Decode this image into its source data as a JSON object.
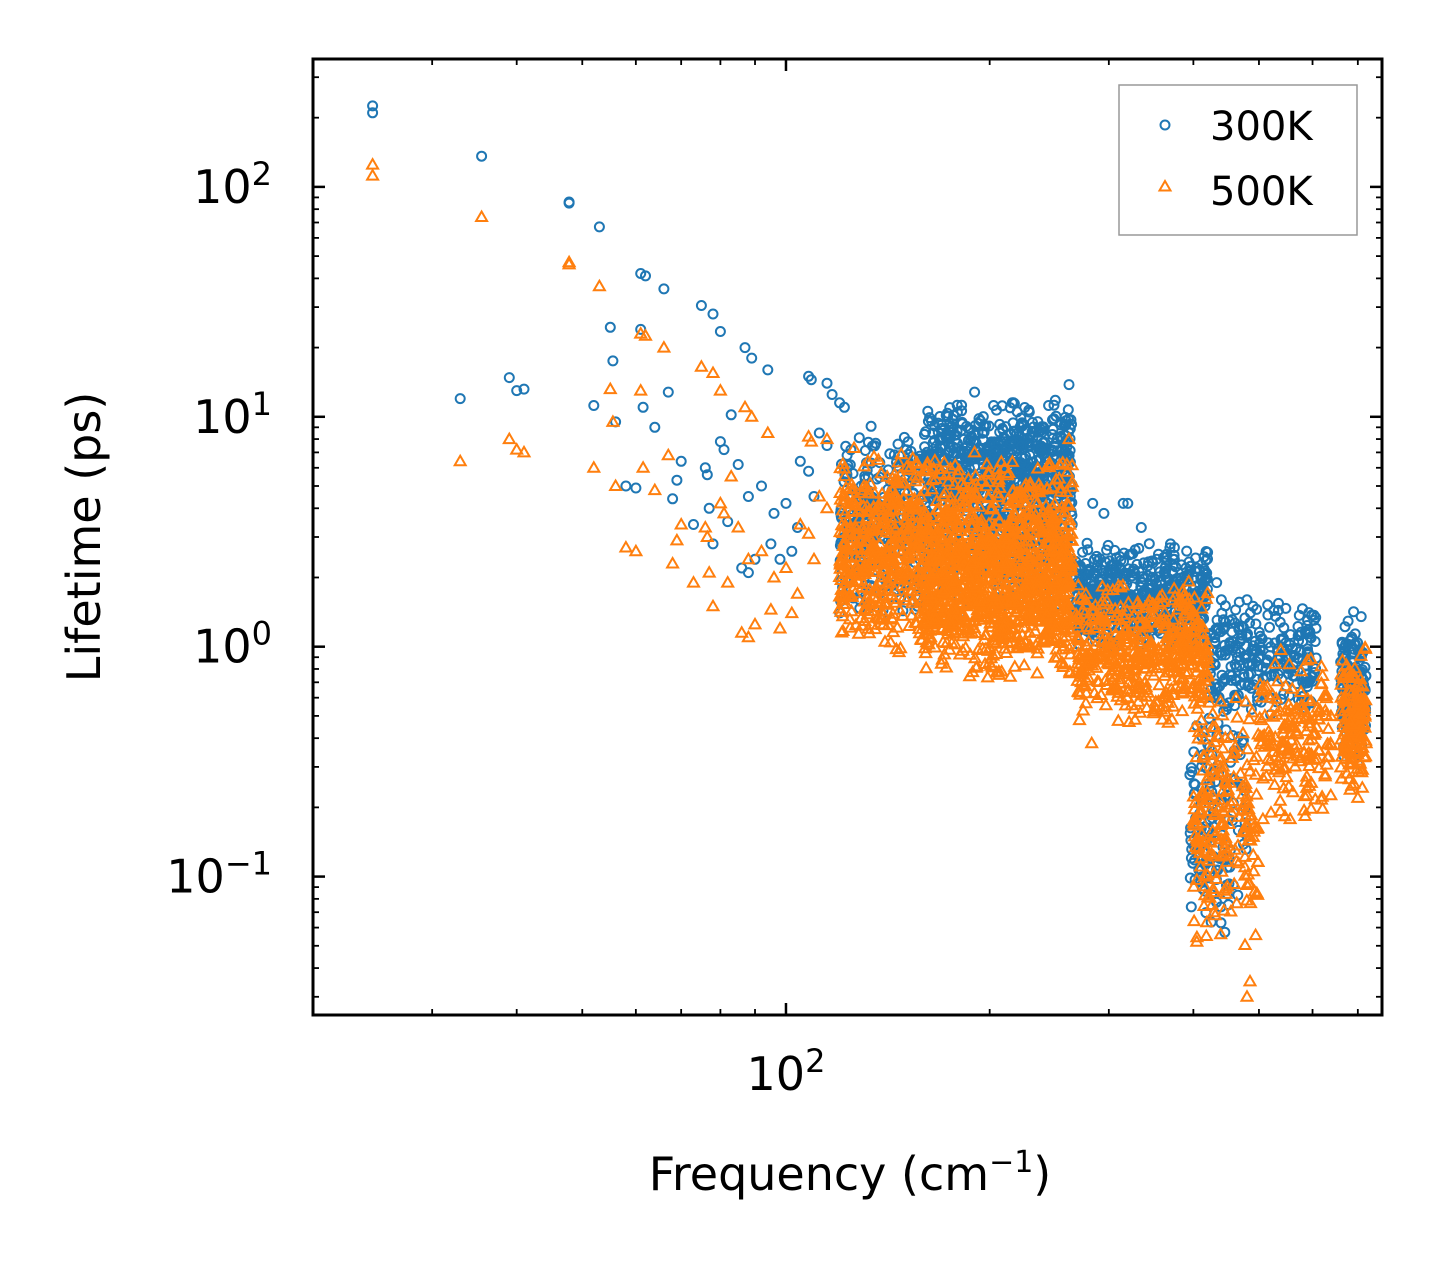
{
  "chart_data": {
    "type": "scatter",
    "title": "",
    "xlabel": "Frequency (cm",
    "xlabel_sup": "−1",
    "xlabel_tail": ")",
    "ylabel": "Lifetime (ps)",
    "xscale": "log",
    "yscale": "log",
    "xlim": [
      20,
      760
    ],
    "ylim": [
      0.025,
      360
    ],
    "x_tick_labels": [
      {
        "value": 100,
        "base": "10",
        "exp": "2"
      }
    ],
    "y_tick_labels": [
      {
        "value": 100,
        "base": "10",
        "exp": "2"
      },
      {
        "value": 10,
        "base": "10",
        "exp": "1"
      },
      {
        "value": 1,
        "base": "10",
        "exp": "0"
      },
      {
        "value": 0.1,
        "base": "10",
        "exp": "−1"
      }
    ],
    "legend_position": "top-right",
    "series": [
      {
        "name": "300K",
        "color": "#1f77b4",
        "marker": "circle",
        "points": [
          [
            24.5,
            225
          ],
          [
            24.5,
            210
          ],
          [
            35.5,
            136
          ],
          [
            47.8,
            86
          ],
          [
            47.8,
            85
          ],
          [
            53,
            67
          ],
          [
            61,
            42
          ],
          [
            62,
            41
          ],
          [
            66,
            36
          ],
          [
            75,
            30.5
          ],
          [
            78,
            28
          ],
          [
            80,
            23.5
          ],
          [
            87,
            20
          ],
          [
            89,
            18
          ],
          [
            94,
            16
          ],
          [
            108,
            15
          ],
          [
            109,
            14.5
          ],
          [
            115,
            14
          ],
          [
            117,
            12.5
          ],
          [
            120,
            11.5
          ],
          [
            122,
            11
          ],
          [
            33,
            12
          ],
          [
            39,
            14.8
          ],
          [
            40,
            13
          ],
          [
            41,
            13.2
          ],
          [
            52,
            11.2
          ],
          [
            55,
            24.5
          ],
          [
            55.5,
            17.5
          ],
          [
            56,
            9.5
          ],
          [
            61,
            24
          ],
          [
            61.5,
            11
          ],
          [
            64,
            9
          ],
          [
            67,
            12.8
          ],
          [
            68,
            4.4
          ],
          [
            69,
            5.3
          ],
          [
            70,
            6.4
          ],
          [
            73,
            3.4
          ],
          [
            76,
            6
          ],
          [
            76.5,
            5.6
          ],
          [
            77,
            4
          ],
          [
            78,
            2.8
          ],
          [
            80,
            7.8
          ],
          [
            81,
            7.2
          ],
          [
            82,
            3.5
          ],
          [
            83,
            10.2
          ],
          [
            85,
            6.2
          ],
          [
            86,
            2.2
          ],
          [
            88,
            4.5
          ],
          [
            90,
            2.4
          ],
          [
            92,
            5
          ],
          [
            95,
            2.8
          ],
          [
            96,
            3.8
          ],
          [
            98,
            2.4
          ],
          [
            100,
            4.2
          ],
          [
            102,
            2.6
          ],
          [
            104,
            3.3
          ],
          [
            105,
            6.4
          ],
          [
            108,
            5.8
          ],
          [
            110,
            4.5
          ],
          [
            112,
            8.5
          ],
          [
            115,
            7.5
          ],
          [
            60,
            4.9
          ],
          [
            58,
            5
          ],
          [
            88,
            2.1
          ],
          [
            262,
            13.8
          ],
          [
            190,
            12.8
          ],
          [
            217,
            11.5
          ],
          [
            216,
            11.5
          ],
          [
            250,
            11.8
          ],
          [
            284,
            4.2
          ],
          [
            295,
            3.8
          ],
          [
            315,
            4.2
          ],
          [
            320,
            4.2
          ],
          [
            335,
            3.3
          ],
          [
            370,
            2.8
          ],
          [
            375,
            2.7
          ],
          [
            390,
            2.2
          ],
          [
            413,
            2
          ],
          [
            418,
            2
          ],
          [
            433,
            1.9
          ],
          [
            440,
            1.6
          ],
          [
            480,
            1.6
          ],
          [
            490,
            1.5
          ],
          [
            590,
            1.3
          ],
          [
            595,
            1.1
          ],
          [
            690,
            1.42
          ],
          [
            705,
            0.9
          ]
        ],
        "clusters": [
          {
            "x": [
              120,
              265
            ],
            "y": [
              1.3,
              9.5
            ],
            "n": 900
          },
          {
            "x": [
              160,
              265
            ],
            "y": [
              4,
              12
            ],
            "n": 450
          },
          {
            "x": [
              268,
              420
            ],
            "y": [
              0.9,
              3.0
            ],
            "n": 550
          },
          {
            "x": [
              420,
              610
            ],
            "y": [
              0.5,
              1.6
            ],
            "n": 260
          },
          {
            "x": [
              395,
              480
            ],
            "y": [
              0.05,
              0.9
            ],
            "n": 150
          },
          {
            "x": [
              660,
              720
            ],
            "y": [
              0.3,
              1.4
            ],
            "n": 140
          }
        ]
      },
      {
        "name": "500K",
        "color": "#ff7f0e",
        "marker": "triangle",
        "points": [
          [
            24.5,
            125
          ],
          [
            24.5,
            112
          ],
          [
            35.5,
            74
          ],
          [
            47.8,
            47
          ],
          [
            47.8,
            46
          ],
          [
            53,
            37
          ],
          [
            61,
            23
          ],
          [
            62,
            22.5
          ],
          [
            66,
            20
          ],
          [
            75,
            16.5
          ],
          [
            78,
            15.5
          ],
          [
            80,
            13
          ],
          [
            87,
            11
          ],
          [
            89,
            10
          ],
          [
            94,
            8.5
          ],
          [
            108,
            8.2
          ],
          [
            109,
            7.8
          ],
          [
            115,
            8
          ],
          [
            33,
            6.4
          ],
          [
            39,
            8
          ],
          [
            40,
            7.2
          ],
          [
            41,
            7
          ],
          [
            52,
            6
          ],
          [
            55,
            13.2
          ],
          [
            55.5,
            9.5
          ],
          [
            56,
            5
          ],
          [
            61,
            13
          ],
          [
            61.5,
            6
          ],
          [
            64,
            4.8
          ],
          [
            67,
            6.8
          ],
          [
            68,
            2.3
          ],
          [
            69,
            2.9
          ],
          [
            70,
            3.4
          ],
          [
            73,
            1.9
          ],
          [
            76,
            3.3
          ],
          [
            76.5,
            3
          ],
          [
            77,
            2.1
          ],
          [
            78,
            1.5
          ],
          [
            80,
            4.2
          ],
          [
            81,
            3.8
          ],
          [
            82,
            1.9
          ],
          [
            83,
            5.5
          ],
          [
            85,
            3.3
          ],
          [
            86,
            1.15
          ],
          [
            88,
            2.4
          ],
          [
            90,
            1.25
          ],
          [
            92,
            2.6
          ],
          [
            95,
            1.45
          ],
          [
            96,
            2
          ],
          [
            98,
            1.2
          ],
          [
            100,
            2.2
          ],
          [
            102,
            1.4
          ],
          [
            104,
            1.7
          ],
          [
            105,
            3.4
          ],
          [
            108,
            3.1
          ],
          [
            110,
            2.4
          ],
          [
            112,
            4.5
          ],
          [
            115,
            4
          ],
          [
            60,
            2.6
          ],
          [
            58,
            2.7
          ],
          [
            88,
            1.1
          ],
          [
            262,
            8
          ],
          [
            190,
            7
          ],
          [
            283,
            0.38
          ],
          [
            480,
            0.03
          ],
          [
            485,
            0.035
          ],
          [
            700,
            0.22
          ]
        ],
        "clusters": [
          {
            "x": [
              120,
              265
            ],
            "y": [
              0.85,
              7.5
            ],
            "n": 1200
          },
          {
            "x": [
              160,
              265
            ],
            "y": [
              0.7,
              3.5
            ],
            "n": 500
          },
          {
            "x": [
              268,
              420
            ],
            "y": [
              0.45,
              2.0
            ],
            "n": 500
          },
          {
            "x": [
              400,
              500
            ],
            "y": [
              0.04,
              0.8
            ],
            "n": 220
          },
          {
            "x": [
              500,
              640
            ],
            "y": [
              0.15,
              1.1
            ],
            "n": 180
          },
          {
            "x": [
              660,
              720
            ],
            "y": [
              0.22,
              1.0
            ],
            "n": 160
          }
        ]
      }
    ]
  }
}
